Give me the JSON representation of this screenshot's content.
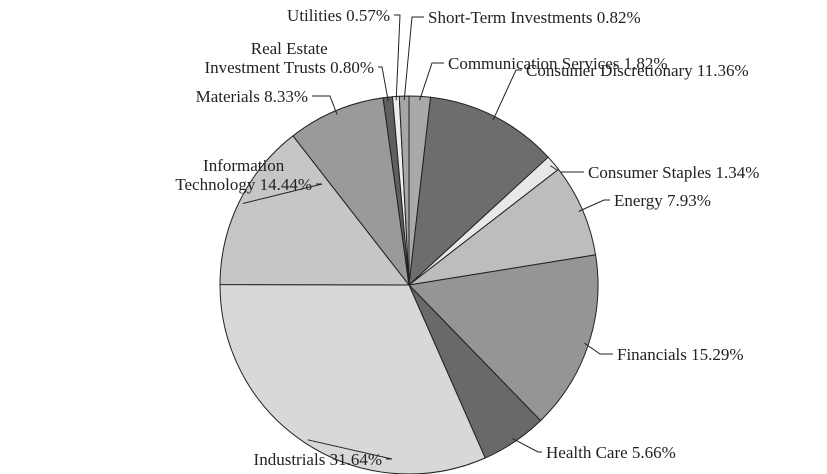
{
  "chart_data": {
    "type": "pie",
    "categories": [
      "Communication Services",
      "Consumer Discretionary",
      "Consumer Staples",
      "Energy",
      "Financials",
      "Health Care",
      "Industrials",
      "Information\nTechnology",
      "Materials",
      "Real Estate\nInvestment Trusts",
      "Utilities",
      "Short-Term Investments"
    ],
    "values": [
      1.82,
      11.36,
      1.34,
      7.93,
      15.29,
      5.66,
      31.64,
      14.44,
      8.33,
      0.8,
      0.57,
      0.82
    ],
    "value_labels": [
      "1.82%",
      "11.36%",
      "1.34%",
      "7.93%",
      "15.29%",
      "5.66%",
      "31.64%",
      "14.44%",
      "8.33%",
      "0.80%",
      "0.57%",
      "0.82%"
    ],
    "colors": [
      "#a9a9ab",
      "#6d6d6f",
      "#e8e8e8",
      "#bdbdbf",
      "#959597",
      "#69696b",
      "#d8d8da",
      "#c6c6c8",
      "#9a9a9c",
      "#5f5f61",
      "#eeeeee",
      "#a6a6a8"
    ]
  }
}
